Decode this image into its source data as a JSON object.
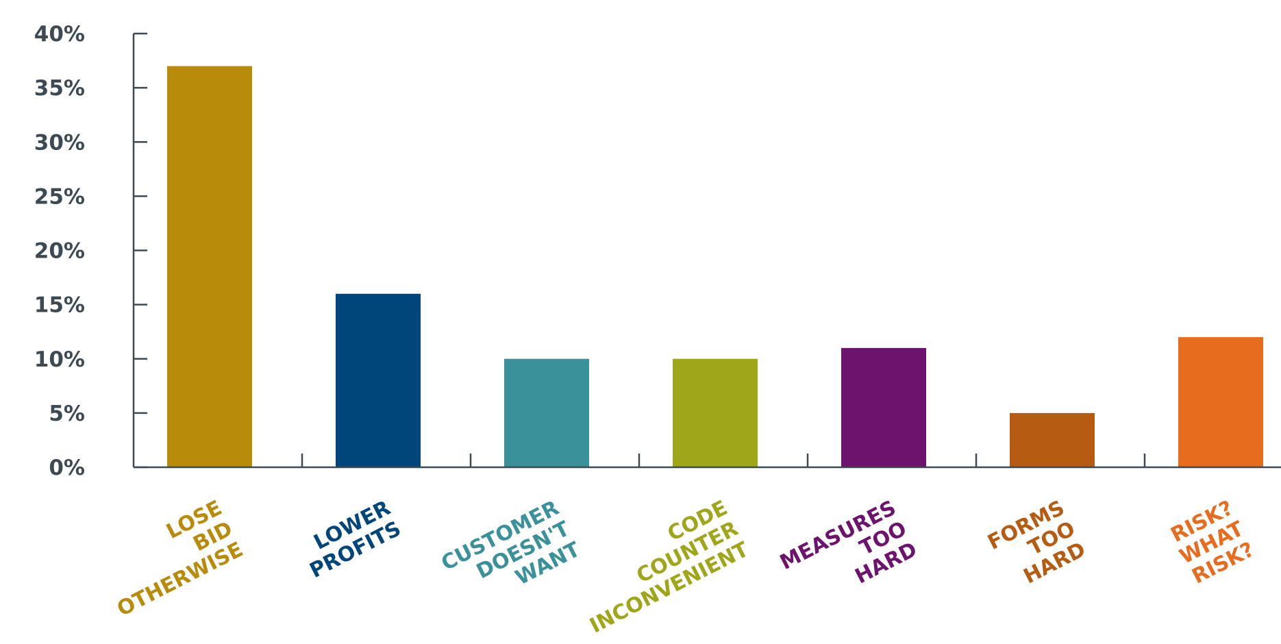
{
  "chart_data": {
    "type": "bar",
    "title": "",
    "xlabel": "",
    "ylabel": "",
    "ylim": [
      0,
      40
    ],
    "y_ticks": [
      0,
      5,
      10,
      15,
      20,
      25,
      30,
      35,
      40
    ],
    "y_tick_labels": [
      "0%",
      "5%",
      "10%",
      "15%",
      "20%",
      "25%",
      "30%",
      "35%",
      "40%"
    ],
    "grid": false,
    "legend": "none",
    "axis_color": "#3e4a53",
    "categories": [
      {
        "lines": [
          "LOSE",
          "BID",
          "OTHERWISE"
        ],
        "color": "#b88b0b"
      },
      {
        "lines": [
          "LOWER",
          "PROFITS"
        ],
        "color": "#00467b"
      },
      {
        "lines": [
          "CUSTOMER",
          "DOESN'T",
          "WANT"
        ],
        "color": "#3a9199"
      },
      {
        "lines": [
          "CODE",
          "COUNTER",
          "INCONVENIENT"
        ],
        "color": "#9fa61a"
      },
      {
        "lines": [
          "MEASURES",
          "TOO",
          "HARD"
        ],
        "color": "#6d136d"
      },
      {
        "lines": [
          "FORMS",
          "TOO",
          "HARD"
        ],
        "color": "#b55c12"
      },
      {
        "lines": [
          "RISK?",
          "WHAT",
          "RISK?"
        ],
        "color": "#e86c1e"
      }
    ],
    "values": [
      37,
      16,
      10,
      10,
      11,
      5,
      12
    ]
  }
}
